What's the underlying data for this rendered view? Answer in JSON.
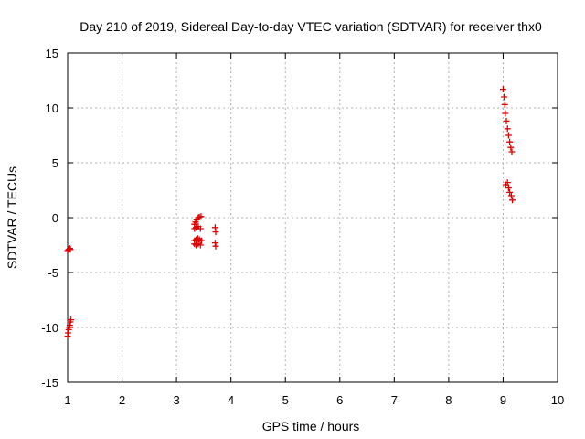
{
  "chart_data": {
    "type": "scatter",
    "title": "Day 210 of 2019, Sidereal Day-to-day VTEC variation (SDTVAR) for receiver thx0",
    "xlabel": "GPS time / hours",
    "ylabel": "SDTVAR / TECUs",
    "xlim": [
      1,
      10
    ],
    "ylim": [
      -15,
      15
    ],
    "xticks": [
      1,
      2,
      3,
      4,
      5,
      6,
      7,
      8,
      9,
      10
    ],
    "yticks": [
      -15,
      -10,
      -5,
      0,
      5,
      10,
      15
    ],
    "grid": true,
    "marker": "plus",
    "colors": {
      "points": "#e00000",
      "grid": "#b0b0b0",
      "axes": "#000000"
    },
    "series": [
      {
        "points": [
          [
            1.0,
            -3.0
          ],
          [
            1.02,
            -2.9
          ],
          [
            1.04,
            -2.8
          ],
          [
            1.05,
            -2.9
          ],
          [
            1.0,
            -10.8
          ],
          [
            1.01,
            -10.5
          ],
          [
            1.02,
            -10.2
          ],
          [
            1.03,
            -10.0
          ],
          [
            1.04,
            -9.8
          ],
          [
            1.05,
            -9.5
          ],
          [
            1.06,
            -9.3
          ],
          [
            3.33,
            -0.6
          ],
          [
            3.35,
            -0.4
          ],
          [
            3.37,
            -0.2
          ],
          [
            3.4,
            0.0
          ],
          [
            3.42,
            0.05
          ],
          [
            3.45,
            0.1
          ],
          [
            3.33,
            -1.0
          ],
          [
            3.36,
            -0.9
          ],
          [
            3.4,
            -0.8
          ],
          [
            3.44,
            -1.0
          ],
          [
            3.33,
            -2.1
          ],
          [
            3.36,
            -2.0
          ],
          [
            3.39,
            -1.9
          ],
          [
            3.42,
            -2.0
          ],
          [
            3.46,
            -2.1
          ],
          [
            3.33,
            -2.4
          ],
          [
            3.36,
            -2.5
          ],
          [
            3.4,
            -2.4
          ],
          [
            3.44,
            -2.5
          ],
          [
            3.71,
            -0.9
          ],
          [
            3.72,
            -1.3
          ],
          [
            3.71,
            -2.3
          ],
          [
            3.72,
            -2.6
          ],
          [
            9.0,
            11.7
          ],
          [
            9.02,
            11.0
          ],
          [
            9.03,
            10.3
          ],
          [
            9.04,
            9.5
          ],
          [
            9.06,
            8.8
          ],
          [
            9.08,
            8.1
          ],
          [
            9.1,
            7.5
          ],
          [
            9.12,
            6.9
          ],
          [
            9.14,
            6.4
          ],
          [
            9.16,
            6.0
          ],
          [
            9.05,
            3.0
          ],
          [
            9.08,
            3.2
          ],
          [
            9.1,
            2.7
          ],
          [
            9.12,
            2.3
          ],
          [
            9.15,
            2.0
          ],
          [
            9.17,
            1.6
          ]
        ]
      }
    ]
  }
}
